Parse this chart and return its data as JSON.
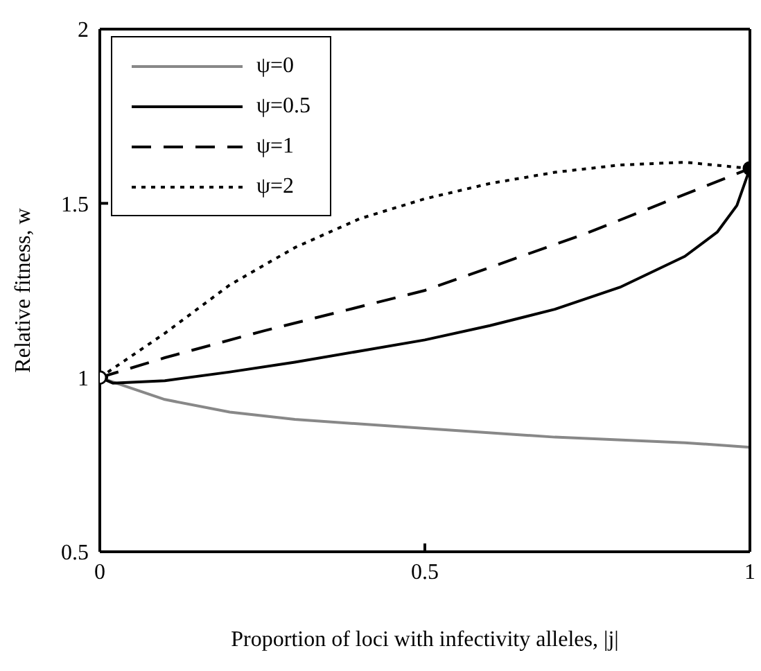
{
  "chart_data": {
    "type": "line",
    "xlabel": "Proportion of loci with infectivity alleles, |j|",
    "ylabel": "Relative fitness, w",
    "xlim": [
      0,
      1
    ],
    "ylim": [
      0.5,
      2
    ],
    "xticks": [
      0,
      0.5,
      1
    ],
    "yticks": [
      0.5,
      1,
      1.5,
      2
    ],
    "grid": false,
    "legend": "top left",
    "marker": "none",
    "series": [
      {
        "name": "ψ=0",
        "color": "#888888",
        "line_style": "solid",
        "x": [
          0,
          0.1,
          0.2,
          0.3,
          0.5,
          0.7,
          0.9,
          1,
          1
        ],
        "values": [
          1,
          0.937,
          0.901,
          0.88,
          0.854,
          0.829,
          0.813,
          0.8,
          1.6
        ]
      },
      {
        "name": "ψ=0.5",
        "color": "#000000",
        "line_style": "solid",
        "x": [
          0,
          0.02,
          0.1,
          0.2,
          0.3,
          0.4,
          0.5,
          0.6,
          0.7,
          0.8,
          0.9,
          0.95,
          0.98,
          1
        ],
        "values": [
          1,
          0.984,
          0.991,
          1.016,
          1.044,
          1.076,
          1.108,
          1.149,
          1.196,
          1.259,
          1.348,
          1.418,
          1.494,
          1.6
        ]
      },
      {
        "name": "ψ=1",
        "color": "#000000",
        "line_style": "dashed",
        "x": [
          0,
          0.1,
          0.25,
          0.5,
          0.75,
          1
        ],
        "values": [
          1,
          1.057,
          1.133,
          1.25,
          1.415,
          1.6
        ]
      },
      {
        "name": "ψ=2",
        "color": "#000000",
        "line_style": "dotted",
        "x": [
          0,
          0.1,
          0.2,
          0.3,
          0.4,
          0.5,
          0.6,
          0.7,
          0.8,
          0.9,
          1
        ],
        "values": [
          1,
          1.127,
          1.266,
          1.373,
          1.456,
          1.513,
          1.557,
          1.589,
          1.61,
          1.618,
          1.6
        ]
      },
      {
        "type": "scatter",
        "color": "#ffffff",
        "marker": "circle",
        "x": [
          0
        ],
        "values": [
          1
        ]
      },
      {
        "type": "scatter",
        "color": "#000000",
        "marker": "circle",
        "x": [
          1
        ],
        "values": [
          1.6
        ]
      }
    ]
  }
}
